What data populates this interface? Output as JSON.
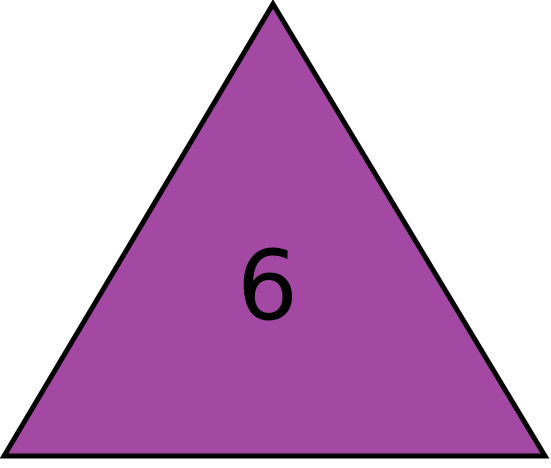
{
  "shape": {
    "kind": "triangle",
    "fill_color": "#A349A4",
    "stroke_color": "#000000",
    "label": "6"
  }
}
